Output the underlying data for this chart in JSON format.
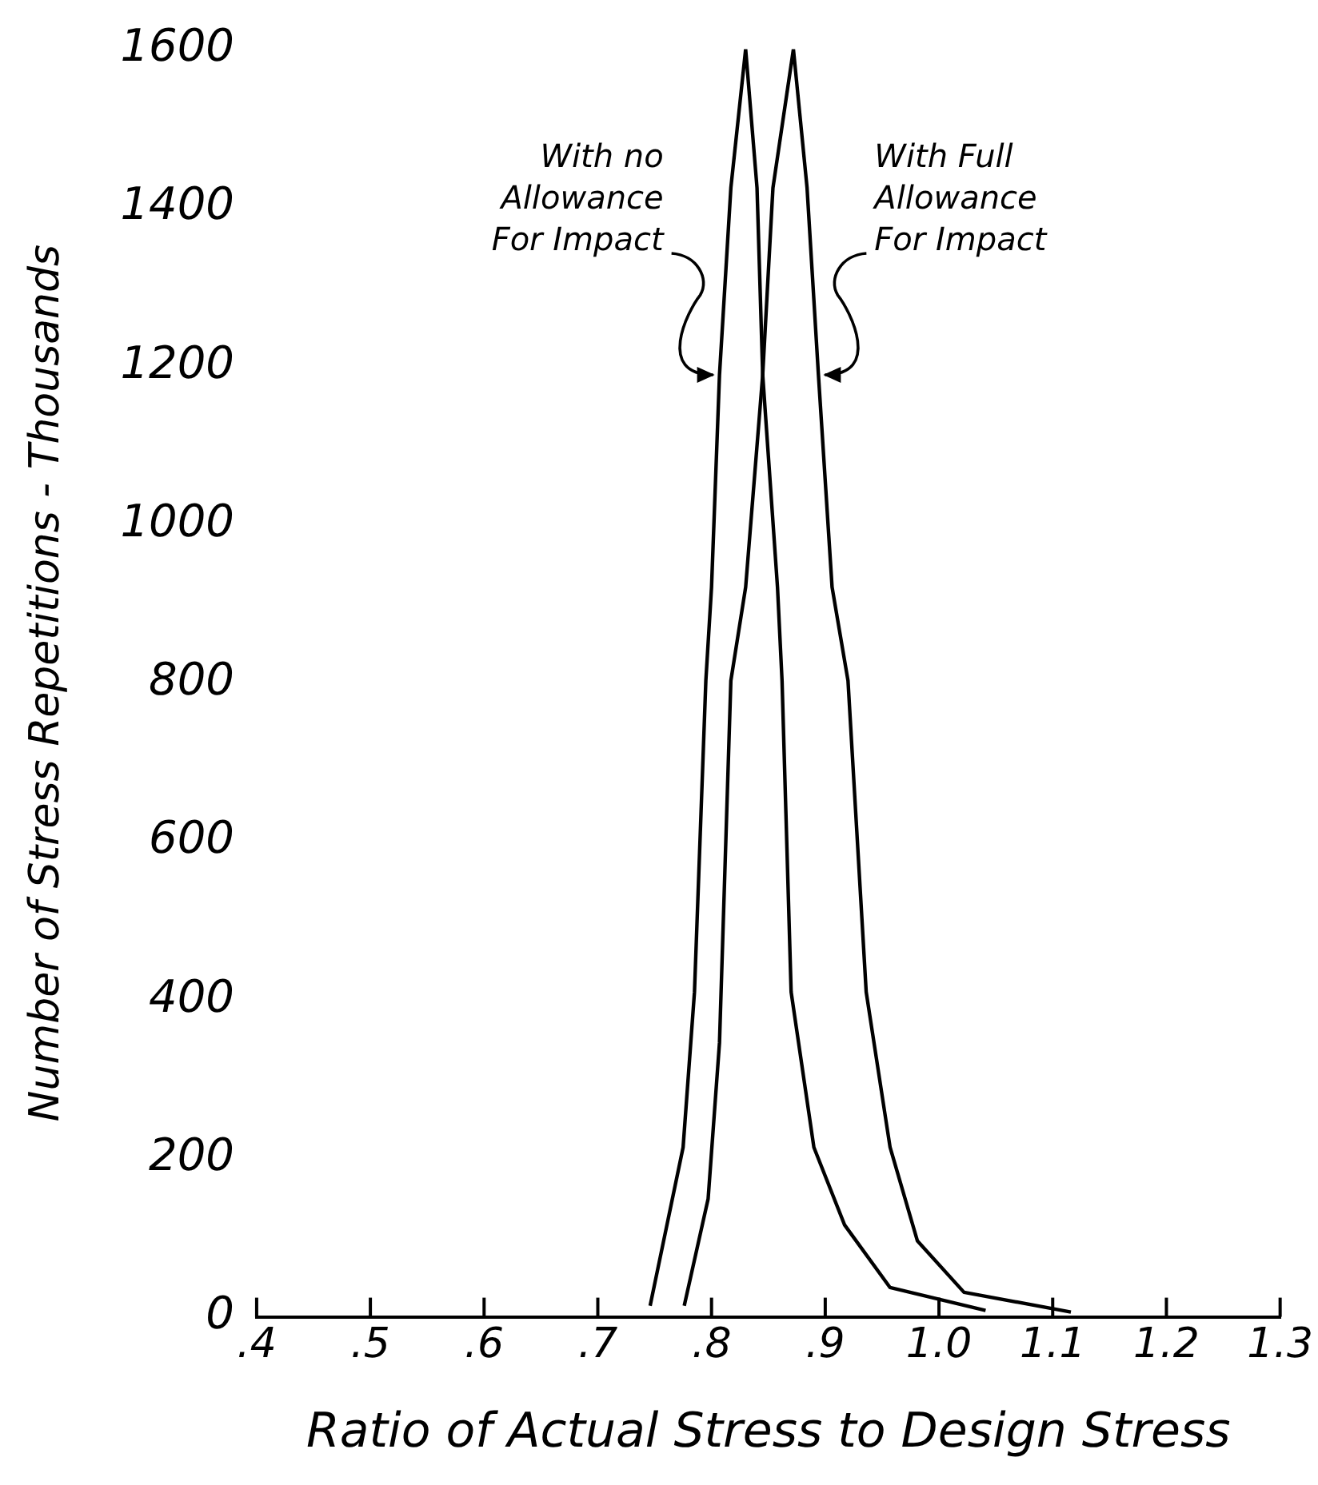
{
  "chart_data": {
    "type": "line",
    "xlabel": "Ratio of Actual Stress to Design Stress",
    "ylabel": "Number of Stress Repetitions - Thousands",
    "xlim": [
      0.4,
      1.3
    ],
    "xticks": [
      {
        "value": 0.4,
        "label": ".4"
      },
      {
        "value": 0.5,
        "label": ".5"
      },
      {
        "value": 0.6,
        "label": ".6"
      },
      {
        "value": 0.7,
        "label": ".7"
      },
      {
        "value": 0.8,
        "label": ".8"
      },
      {
        "value": 0.9,
        "label": ".9"
      },
      {
        "value": 1.0,
        "label": "1.0"
      },
      {
        "value": 1.1,
        "label": "1.1"
      },
      {
        "value": 1.2,
        "label": "1.2"
      },
      {
        "value": 1.3,
        "label": "1.3"
      }
    ],
    "ylim": [
      0,
      1600
    ],
    "yticks": [
      0,
      200,
      400,
      600,
      800,
      1000,
      1200,
      1400,
      1600
    ],
    "grid": false,
    "legend": false,
    "marker": "none",
    "line_style": "solid",
    "series": [
      {
        "color": "#000000",
        "x": [
          0.746,
          0.775,
          0.785,
          0.795,
          0.8,
          0.807,
          0.817,
          0.83,
          0.84,
          0.845,
          0.858,
          0.862,
          0.87,
          0.89,
          0.917,
          0.957,
          1.041
        ],
        "values": [
          14,
          214,
          410,
          803,
          921,
          1189,
          1425,
          1600,
          1425,
          1189,
          921,
          803,
          410,
          214,
          116,
          37,
          8
        ]
      },
      {
        "color": "#000000",
        "x": [
          0.776,
          0.797,
          0.807,
          0.817,
          0.83,
          0.845,
          0.854,
          0.872,
          0.884,
          0.894,
          0.906,
          0.92,
          0.936,
          0.957,
          0.981,
          1.022,
          1.116
        ],
        "values": [
          14,
          149,
          346,
          803,
          921,
          1189,
          1425,
          1600,
          1425,
          1189,
          921,
          803,
          410,
          214,
          96,
          31,
          6
        ]
      }
    ],
    "annotations": [
      {
        "text": "With no\nAllowance\nFor Impact",
        "x": 0.807,
        "y": 1189
      },
      {
        "text": "With Full\nAllowance\nFor Impact",
        "x": 0.894,
        "y": 1189
      }
    ]
  }
}
